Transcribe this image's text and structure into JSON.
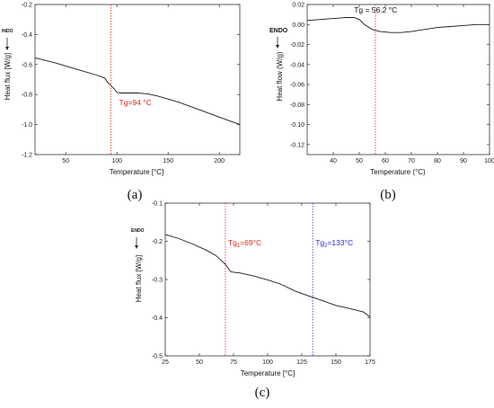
{
  "chart_data": [
    {
      "type": "line",
      "panel_label": "(a)",
      "xlabel": "Temperature [°C]",
      "ylabel": "Heat flux [W/g]",
      "endo_label": "INDO",
      "xlim": [
        20,
        220
      ],
      "ylim": [
        -1.2,
        -0.2
      ],
      "xticks": [
        "50",
        "100",
        "150",
        "200"
      ],
      "yticks": [
        "-1.2",
        "-1.0",
        "-0.8",
        "-0.6",
        "-0.4",
        "-0.2"
      ],
      "x": [
        20,
        40,
        60,
        80,
        88,
        91,
        94,
        97,
        100,
        104,
        110,
        120,
        130,
        140,
        160,
        180,
        200,
        220
      ],
      "y": [
        -0.555,
        -0.59,
        -0.63,
        -0.67,
        -0.69,
        -0.72,
        -0.74,
        -0.76,
        -0.785,
        -0.79,
        -0.79,
        -0.79,
        -0.795,
        -0.81,
        -0.85,
        -0.9,
        -0.95,
        -1.0
      ],
      "tg_x": 94,
      "tg_label": "Tg=94 °C",
      "tg_color": "#e0261c",
      "tg_label_pos": [
        102,
        -0.87
      ]
    },
    {
      "type": "line",
      "panel_label": "(b)",
      "xlabel": "Temperature (°C)",
      "ylabel": "Heat flow (W/g)",
      "endo_label": "ENDO",
      "xlim": [
        30,
        100
      ],
      "ylim": [
        -0.13,
        0.02
      ],
      "xticks": [
        "40",
        "50",
        "60",
        "70",
        "80",
        "90",
        "100"
      ],
      "yticks": [
        "-0.12",
        "-0.10",
        "-0.08",
        "-0.06",
        "-0.04",
        "-0.02",
        "0.00",
        "0.02"
      ],
      "x": [
        30,
        35,
        40,
        45,
        48,
        50,
        52,
        55,
        58,
        62,
        66,
        70,
        75,
        80,
        85,
        90,
        95,
        100
      ],
      "y": [
        0.004,
        0.005,
        0.006,
        0.007,
        0.007,
        0.005,
        0.0,
        -0.005,
        -0.007,
        -0.008,
        -0.008,
        -0.007,
        -0.005,
        -0.003,
        -0.002,
        -0.001,
        0.0,
        0.0
      ],
      "tg_x": 56.2,
      "tg_label": "Tg = 56.2 °C",
      "tg_color": "#e0261c",
      "tg_label_pos": [
        48,
        0.012
      ]
    },
    {
      "type": "line",
      "panel_label": "(c)",
      "xlabel": "Temperature [°C]",
      "ylabel": "Heat flux [W/g]",
      "endo_label": "ENDO",
      "xlim": [
        25,
        175
      ],
      "ylim": [
        -0.5,
        -0.1
      ],
      "xticks": [
        "25",
        "50",
        "75",
        "100",
        "125",
        "150",
        "175"
      ],
      "yticks": [
        "-0.5",
        "-0.4",
        "-0.3",
        "-0.2",
        "-0.1"
      ],
      "x": [
        25,
        35,
        45,
        55,
        62,
        66,
        69,
        71,
        73,
        75,
        80,
        90,
        100,
        110,
        120,
        130,
        140,
        150,
        160,
        170,
        175
      ],
      "y": [
        -0.182,
        -0.193,
        -0.207,
        -0.223,
        -0.237,
        -0.25,
        -0.26,
        -0.27,
        -0.28,
        -0.281,
        -0.283,
        -0.291,
        -0.301,
        -0.313,
        -0.33,
        -0.343,
        -0.355,
        -0.368,
        -0.376,
        -0.385,
        -0.398
      ],
      "tg_lines": [
        {
          "x": 69,
          "label_main": "Tg",
          "label_sub": "1",
          "label_rest": "=69°C",
          "color": "#e0261c",
          "label_pos": [
            71,
            -0.21
          ]
        },
        {
          "x": 133,
          "label_main": "Tg",
          "label_sub": "2",
          "label_rest": "=133°C",
          "color": "#2a2ad0",
          "label_pos": [
            135,
            -0.21
          ]
        }
      ]
    }
  ]
}
